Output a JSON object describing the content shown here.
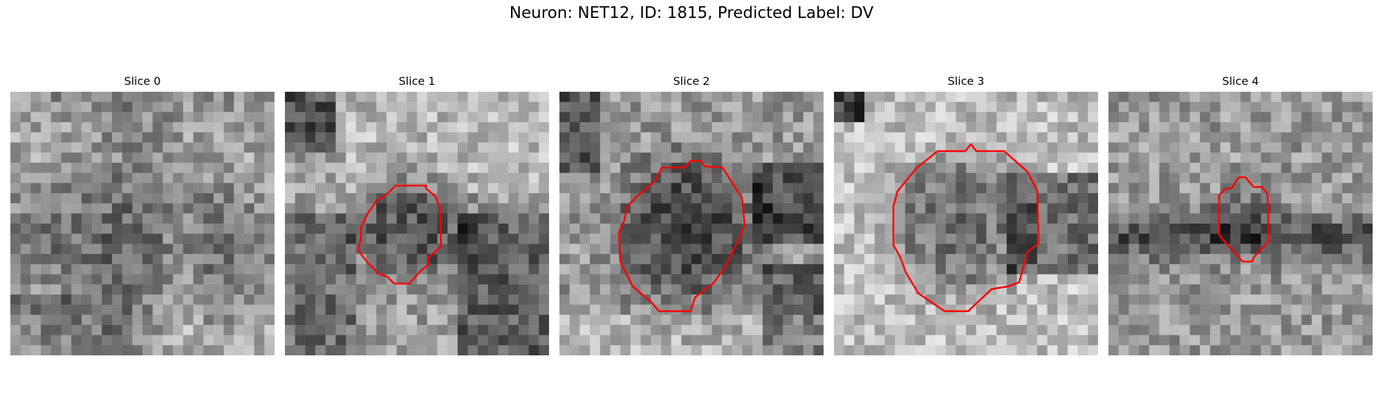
{
  "figure": {
    "title": "Neuron: NET12, ID: 1815, Predicted Label: DV"
  },
  "panels": [
    {
      "label": "Slice 0",
      "has_outline": false
    },
    {
      "label": "Slice 1",
      "has_outline": true
    },
    {
      "label": "Slice 2",
      "has_outline": true
    },
    {
      "label": "Slice 3",
      "has_outline": true
    },
    {
      "label": "Slice 4",
      "has_outline": true
    }
  ],
  "colors": {
    "outline": "#ff0000",
    "background": "#ffffff"
  }
}
